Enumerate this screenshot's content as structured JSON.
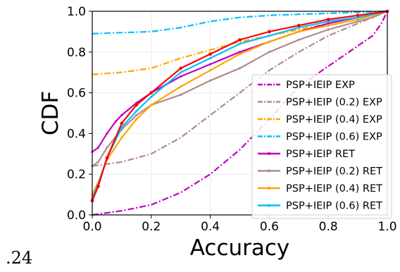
{
  "page": {
    "corner_note": ".24"
  },
  "colors": {
    "magenta": "#c000c0",
    "taupe": "#b08a8a",
    "orange": "#ffa500",
    "skyblue": "#00bfff",
    "red": "#ff0000",
    "axis": "#000000",
    "grid": "#ebebeb"
  },
  "chart_data": {
    "type": "line",
    "title": "",
    "xlabel": "Accuracy",
    "ylabel": "CDF",
    "xlim": [
      0.0,
      1.0
    ],
    "ylim": [
      0.0,
      1.0
    ],
    "xticks": [
      "0.0",
      "0.2",
      "0.4",
      "0.6",
      "0.8",
      "1.0"
    ],
    "yticks": [
      "0.0",
      "0.2",
      "0.4",
      "0.6",
      "0.8",
      "1.0"
    ],
    "grid": true,
    "legend_position": "lower-right",
    "series": [
      {
        "name": "PSP+IEIP EXP",
        "color": "#c000c0",
        "style": "dashdot",
        "x": [
          0.0,
          0.1,
          0.2,
          0.3,
          0.4,
          0.5,
          0.6,
          0.7,
          0.8,
          0.9,
          0.95,
          0.98,
          1.0
        ],
        "y": [
          0.0,
          0.02,
          0.05,
          0.11,
          0.2,
          0.32,
          0.47,
          0.63,
          0.73,
          0.83,
          0.88,
          0.94,
          1.0
        ]
      },
      {
        "name": "PSP+IEIP (0.2) EXP",
        "color": "#b08a8a",
        "style": "dashdot",
        "x": [
          0.0,
          0.1,
          0.2,
          0.3,
          0.4,
          0.5,
          0.6,
          0.7,
          0.8,
          0.9,
          1.0
        ],
        "y": [
          0.24,
          0.26,
          0.3,
          0.38,
          0.49,
          0.6,
          0.71,
          0.8,
          0.88,
          0.94,
          1.0
        ]
      },
      {
        "name": "PSP+IEIP (0.4) EXP",
        "color": "#ffa500",
        "style": "dashdot",
        "x": [
          0.0,
          0.1,
          0.2,
          0.3,
          0.4,
          0.5,
          0.6,
          0.7,
          0.8,
          0.9,
          1.0
        ],
        "y": [
          0.69,
          0.7,
          0.72,
          0.77,
          0.81,
          0.85,
          0.88,
          0.91,
          0.94,
          0.97,
          1.0
        ]
      },
      {
        "name": "PSP+IEIP (0.6) EXP",
        "color": "#00bfff",
        "style": "dashdot",
        "x": [
          0.0,
          0.1,
          0.2,
          0.3,
          0.4,
          0.5,
          0.6,
          0.7,
          0.8,
          0.9,
          1.0
        ],
        "y": [
          0.89,
          0.895,
          0.9,
          0.92,
          0.95,
          0.97,
          0.98,
          0.985,
          0.99,
          0.995,
          1.0
        ]
      },
      {
        "name": "PSP+IEIP RET",
        "color": "#c000c0",
        "style": "solid",
        "x": [
          0.0,
          0.02,
          0.05,
          0.08,
          0.1,
          0.15,
          0.2,
          0.25,
          0.3,
          0.4,
          0.5,
          0.6,
          0.7,
          0.8,
          0.9,
          1.0
        ],
        "y": [
          0.31,
          0.33,
          0.4,
          0.46,
          0.49,
          0.55,
          0.6,
          0.64,
          0.68,
          0.74,
          0.8,
          0.85,
          0.9,
          0.94,
          0.97,
          1.0
        ]
      },
      {
        "name": "PSP+IEIP (0.2) RET",
        "color": "#b08a8a",
        "style": "solid",
        "x": [
          0.0,
          0.02,
          0.05,
          0.1,
          0.15,
          0.2,
          0.3,
          0.4,
          0.5,
          0.6,
          0.7,
          0.8,
          0.9,
          0.95,
          1.0
        ],
        "y": [
          0.24,
          0.26,
          0.33,
          0.42,
          0.49,
          0.54,
          0.59,
          0.66,
          0.72,
          0.8,
          0.86,
          0.91,
          0.95,
          0.97,
          1.0
        ]
      },
      {
        "name": "PSP+IEIP (0.4) RET",
        "color": "#ffa500",
        "style": "solid",
        "x": [
          0.0,
          0.02,
          0.05,
          0.1,
          0.15,
          0.2,
          0.3,
          0.4,
          0.5,
          0.6,
          0.7,
          0.8,
          0.9,
          1.0
        ],
        "y": [
          0.1,
          0.16,
          0.27,
          0.38,
          0.47,
          0.54,
          0.63,
          0.71,
          0.79,
          0.85,
          0.9,
          0.93,
          0.96,
          1.0
        ]
      },
      {
        "name": "PSP+IEIP (0.6) RET",
        "color": "#00bfff",
        "style": "solid",
        "x": [
          0.0,
          0.02,
          0.05,
          0.1,
          0.15,
          0.2,
          0.3,
          0.4,
          0.5,
          0.6,
          0.7,
          0.8,
          0.9,
          1.0
        ],
        "y": [
          0.08,
          0.15,
          0.28,
          0.43,
          0.51,
          0.58,
          0.7,
          0.77,
          0.84,
          0.88,
          0.92,
          0.95,
          0.97,
          1.0
        ]
      },
      {
        "name": "",
        "color": "#ff0000",
        "style": "solid-markers",
        "x": [
          0.0,
          0.02,
          0.05,
          0.1,
          0.15,
          0.2,
          0.3,
          0.4,
          0.5,
          0.6,
          0.7,
          0.8,
          0.9,
          1.0
        ],
        "y": [
          0.07,
          0.14,
          0.28,
          0.45,
          0.54,
          0.6,
          0.72,
          0.79,
          0.86,
          0.9,
          0.93,
          0.96,
          0.98,
          1.0
        ]
      }
    ]
  }
}
